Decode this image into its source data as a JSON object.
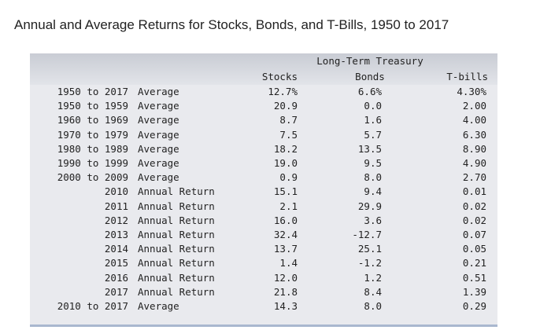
{
  "title": "Annual and Average Returns for Stocks, Bonds, and T-Bills, 1950 to 2017",
  "table": {
    "header": {
      "stocks": "Stocks",
      "bonds": [
        "Long-Term Treasury",
        "Bonds"
      ],
      "tbills": "T-bills"
    },
    "rows": [
      [
        "1950 to 2017",
        "Average",
        "12.7%",
        "6.6%",
        "4.30%"
      ],
      [
        "1950 to 1959",
        "Average",
        "20.9",
        "0.0",
        "2.00"
      ],
      [
        "1960 to 1969",
        "Average",
        "8.7",
        "1.6",
        "4.00"
      ],
      [
        "1970 to 1979",
        "Average",
        "7.5",
        "5.7",
        "6.30"
      ],
      [
        "1980 to 1989",
        "Average",
        "18.2",
        "13.5",
        "8.90"
      ],
      [
        "1990 to 1999",
        "Average",
        "19.0",
        "9.5",
        "4.90"
      ],
      [
        "2000 to 2009",
        "Average",
        "0.9",
        "8.0",
        "2.70"
      ],
      [
        "2010",
        "Annual Return",
        "15.1",
        "9.4",
        "0.01"
      ],
      [
        "2011",
        "Annual Return",
        "2.1",
        "29.9",
        "0.02"
      ],
      [
        "2012",
        "Annual Return",
        "16.0",
        "3.6",
        "0.02"
      ],
      [
        "2013",
        "Annual Return",
        "32.4",
        "-12.7",
        "0.07"
      ],
      [
        "2014",
        "Annual Return",
        "13.7",
        "25.1",
        "0.05"
      ],
      [
        "2015",
        "Annual Return",
        "1.4",
        "-1.2",
        "0.21"
      ],
      [
        "2016",
        "Annual Return",
        "12.0",
        "1.2",
        "0.51"
      ],
      [
        "2017",
        "Annual Return",
        "21.8",
        "8.4",
        "1.39"
      ],
      [
        "2010 to 2017",
        "Average",
        "14.3",
        "8.0",
        "0.29"
      ]
    ]
  }
}
